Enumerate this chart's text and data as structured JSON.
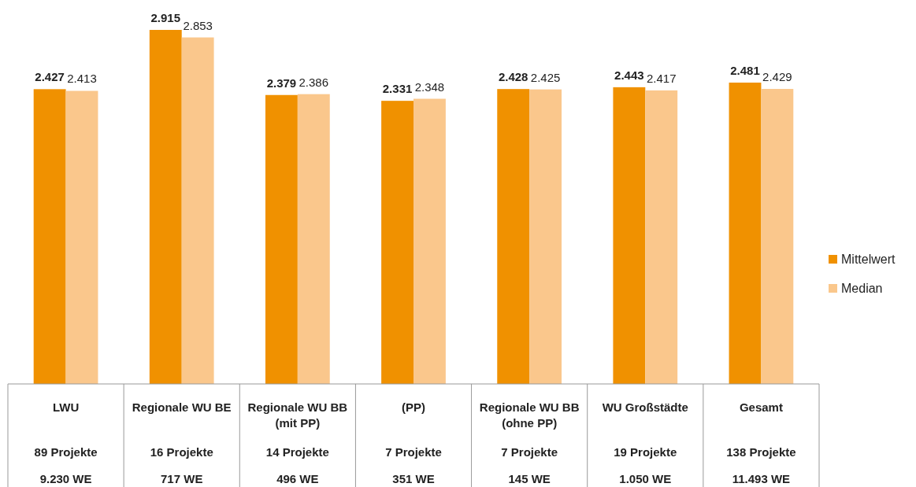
{
  "chart_data": {
    "type": "bar",
    "categories": [
      "LWU\n89 Projekte\n9.230 WE",
      "Regionale WU BE\n16 Projekte\n717 WE",
      "Regionale WU BB (mit PP)\n14 Projekte\n496 WE",
      "(PP)\n7 Projekte\n351 WE",
      "Regionale WU BB (ohne PP)\n7 Projekte\n145 WE",
      "WU Großstädte\n19 Projekte\n1.050 WE",
      "Gesamt\n138 Projekte\n11.493 WE"
    ],
    "series": [
      {
        "name": "Mittelwert",
        "color": "#f09100",
        "values": [
          2.427,
          2.915,
          2.379,
          2.331,
          2.428,
          2.443,
          2.481
        ]
      },
      {
        "name": "Median",
        "color": "#fac78c",
        "values": [
          2.413,
          2.853,
          2.386,
          2.348,
          2.425,
          2.417,
          2.429
        ]
      }
    ],
    "data_labels": true,
    "legend": "right"
  }
}
